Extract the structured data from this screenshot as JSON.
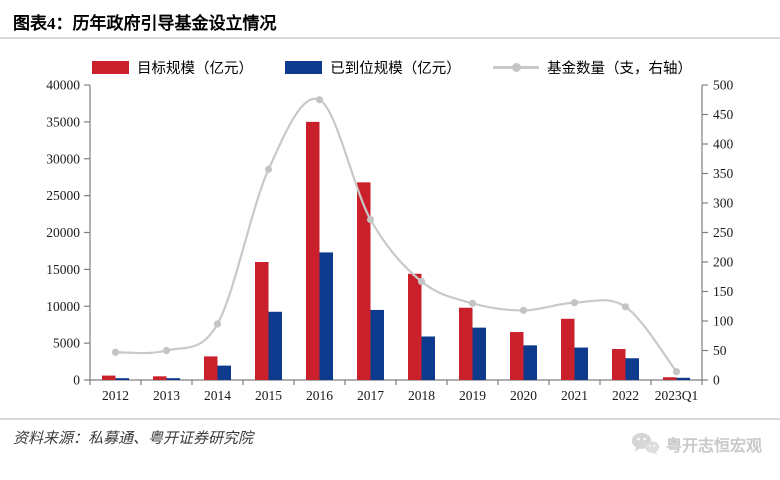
{
  "header": {
    "title": "图表4：历年政府引导基金设立情况"
  },
  "footer": {
    "source": "资料来源：私募通、粤开证券研究院",
    "watermark": "粤开志恒宏观"
  },
  "colors": {
    "target_bar": "#C9202C",
    "inplace_bar": "#0E3A8D",
    "count_line": "#C9C9C9",
    "axis": "#7F7F7F",
    "rule": "#D8D8D8",
    "tick_label": "#1A1A1A"
  },
  "chart_data": {
    "type": "bar",
    "title": "历年政府引导基金设立情况",
    "categories": [
      "2012",
      "2013",
      "2014",
      "2015",
      "2016",
      "2017",
      "2018",
      "2019",
      "2020",
      "2021",
      "2022",
      "2023Q1"
    ],
    "series": [
      {
        "name": "目标规模（亿元）",
        "type": "bar",
        "axis": "left",
        "color": "#C9202C",
        "values": [
          600,
          500,
          3200,
          16000,
          35000,
          26800,
          14400,
          9800,
          6500,
          8300,
          4200,
          370
        ]
      },
      {
        "name": "已到位规模（亿元）",
        "type": "bar",
        "axis": "left",
        "color": "#0E3A8D",
        "values": [
          250,
          250,
          1950,
          9250,
          17300,
          9500,
          5900,
          7100,
          4700,
          4400,
          2950,
          300
        ]
      },
      {
        "name": "基金数量（支，右轴）",
        "type": "line",
        "axis": "right",
        "color": "#C9C9C9",
        "values": [
          47,
          50,
          95,
          357,
          475,
          272,
          167,
          130,
          118,
          131,
          124,
          14
        ]
      }
    ],
    "left_axis": {
      "min": 0,
      "max": 40000,
      "step": 5000
    },
    "right_axis": {
      "min": 0,
      "max": 500,
      "step": 50
    },
    "grid": false,
    "legend_position": "top"
  }
}
